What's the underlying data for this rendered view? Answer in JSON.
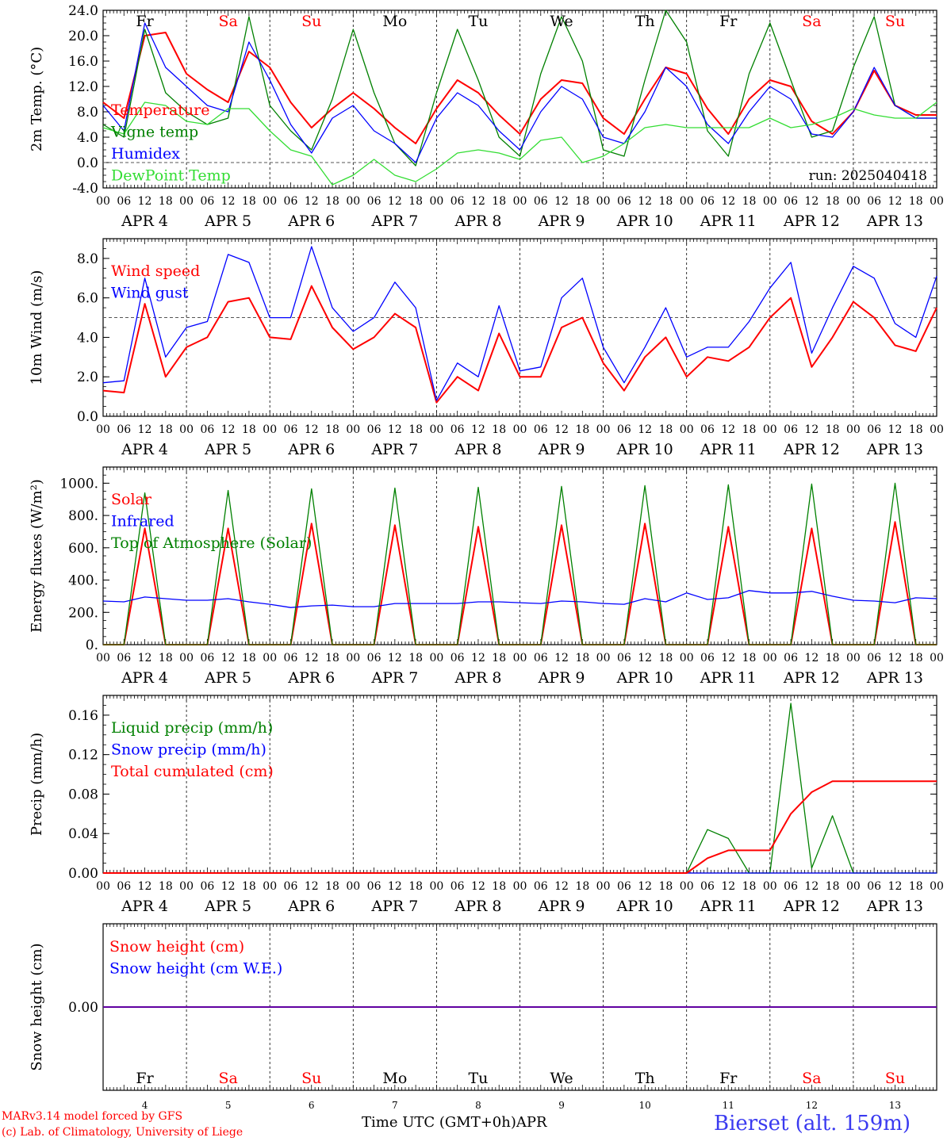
{
  "colors": {
    "red": "#ff0000",
    "darkgreen": "#008000",
    "blue": "#0000ff",
    "lime": "#33dd33",
    "station": "#3a3af0"
  },
  "days": [
    "4",
    "5",
    "6",
    "7",
    "8",
    "9",
    "10",
    "11",
    "12",
    "13"
  ],
  "month": "APR",
  "tick_hours": [
    "00",
    "06",
    "12",
    "18"
  ],
  "weekday_labels": [
    {
      "t": "Fr",
      "color": "#000000"
    },
    {
      "t": "Sa",
      "color": "#ff0000"
    },
    {
      "t": "Su",
      "color": "#ff0000"
    },
    {
      "t": "Mo",
      "color": "#000000"
    },
    {
      "t": "Tu",
      "color": "#000000"
    },
    {
      "t": "We",
      "color": "#000000"
    },
    {
      "t": "Th",
      "color": "#000000"
    },
    {
      "t": "Fr",
      "color": "#000000"
    },
    {
      "t": "Sa",
      "color": "#ff0000"
    },
    {
      "t": "Su",
      "color": "#ff0000"
    }
  ],
  "footer": {
    "model": "MARv3.14 model forced by GFS",
    "lab": "(c) Lab. of Climatology, University of Liege",
    "xlabel": "Time UTC (GMT+0h)",
    "xmonth": "APR",
    "station": "Bierset (alt. 159m)"
  },
  "chart_data": [
    {
      "type": "line",
      "ylabel": "2m Temp. (°C)",
      "ylim": [
        -4,
        24
      ],
      "yticks": [
        "-4.0",
        "0.0",
        "4.0",
        "8.0",
        "12.0",
        "16.0",
        "20.0",
        "24.0"
      ],
      "ref_line": 0,
      "annotation": "run: 2025040418",
      "x_hours": [
        0,
        6,
        12,
        18,
        24,
        30,
        36,
        42,
        48,
        54,
        60,
        66,
        72,
        78,
        84,
        90,
        96,
        102,
        108,
        114,
        120,
        126,
        132,
        138,
        144,
        150,
        156,
        162,
        168,
        174,
        180,
        186,
        192,
        198,
        204,
        210,
        216,
        222,
        228,
        234,
        240
      ],
      "series": [
        {
          "name": "Temperature",
          "color": "#ff0000",
          "values": [
            9.5,
            7,
            20,
            20.5,
            14,
            11.5,
            9.5,
            17.5,
            15,
            9.5,
            5.5,
            8.5,
            11,
            8.5,
            5.5,
            3,
            8.5,
            13,
            11,
            7.5,
            4.5,
            10,
            13,
            12.5,
            7,
            4.5,
            10,
            15,
            14,
            8.5,
            4.5,
            10,
            13,
            12,
            6.5,
            4.5,
            8,
            14.5,
            9,
            7.5,
            7.5
          ]
        },
        {
          "name": "Vigne temp",
          "color": "#008000",
          "values": [
            6,
            4,
            21,
            11,
            8,
            6,
            7,
            23,
            9,
            5,
            2,
            10,
            21,
            11,
            3,
            -0.5,
            11,
            21,
            13,
            4,
            1,
            14,
            23,
            16,
            2,
            1,
            13,
            24,
            19,
            5,
            1,
            14,
            22,
            13,
            4,
            5,
            15,
            23,
            9,
            7,
            7
          ]
        },
        {
          "name": "Humidex",
          "color": "#0000ff",
          "values": [
            9,
            5,
            22,
            15,
            12,
            9,
            8,
            19,
            13,
            6,
            1.5,
            7,
            9,
            5,
            3,
            0,
            7,
            11,
            9,
            5,
            2,
            8,
            12,
            10,
            4,
            3,
            8,
            15,
            12,
            6,
            3,
            8,
            12,
            10,
            4.5,
            4,
            8,
            15,
            9,
            7,
            7
          ]
        },
        {
          "name": "DewPoint Temp",
          "color": "#33dd33",
          "values": [
            5.5,
            4.5,
            9.5,
            9,
            6.5,
            6,
            8.5,
            8.5,
            5,
            2,
            1,
            -3.5,
            -2,
            0.5,
            -2,
            -3,
            -1,
            1.5,
            2,
            1.5,
            0.5,
            3.5,
            4,
            0,
            1,
            3,
            5.5,
            6,
            5.5,
            5.5,
            5.5,
            5.5,
            7,
            5.5,
            6,
            7,
            8.5,
            7.5,
            7,
            7,
            9.5
          ]
        }
      ]
    },
    {
      "type": "line",
      "ylabel": "10m Wind (m/s)",
      "ylim": [
        0,
        9
      ],
      "yticks": [
        "0.0",
        "2.0",
        "4.0",
        "6.0",
        "8.0"
      ],
      "ref_line": 5,
      "x_hours": [
        0,
        6,
        12,
        18,
        24,
        30,
        36,
        42,
        48,
        54,
        60,
        66,
        72,
        78,
        84,
        90,
        96,
        102,
        108,
        114,
        120,
        126,
        132,
        138,
        144,
        150,
        156,
        162,
        168,
        174,
        180,
        186,
        192,
        198,
        204,
        210,
        216,
        222,
        228,
        234,
        240
      ],
      "series": [
        {
          "name": "Wind speed",
          "color": "#ff0000",
          "values": [
            1.3,
            1.2,
            5.7,
            2,
            3.5,
            4,
            5.8,
            6,
            4,
            3.9,
            6.6,
            4.5,
            3.4,
            4,
            5.2,
            4.5,
            0.7,
            2,
            1.3,
            4.2,
            2,
            2,
            4.5,
            5,
            2.7,
            1.3,
            3,
            4,
            2,
            3,
            2.8,
            3.5,
            5,
            6,
            2.5,
            4,
            5.8,
            5,
            3.6,
            3.3,
            5.5
          ]
        },
        {
          "name": "Wind gust",
          "color": "#0000ff",
          "values": [
            1.7,
            1.8,
            7,
            3,
            4.5,
            4.8,
            8.2,
            7.8,
            5,
            5,
            8.6,
            5.5,
            4.3,
            5,
            6.8,
            5.5,
            0.8,
            2.7,
            2,
            5.6,
            2.3,
            2.5,
            6,
            7,
            3.5,
            1.7,
            3.5,
            5.5,
            3,
            3.5,
            3.5,
            4.8,
            6.5,
            7.8,
            3.2,
            5.5,
            7.6,
            7,
            4.7,
            4,
            7.1
          ]
        }
      ]
    },
    {
      "type": "line",
      "ylabel": "Energy fluxes (W/m²)",
      "ylim": [
        0,
        1100
      ],
      "yticks": [
        "0.",
        "200.",
        "400.",
        "600.",
        "800.",
        "1000."
      ],
      "x_hours": [
        0,
        6,
        12,
        18,
        24,
        30,
        36,
        42,
        48,
        54,
        60,
        66,
        72,
        78,
        84,
        90,
        96,
        102,
        108,
        114,
        120,
        126,
        132,
        138,
        144,
        150,
        156,
        162,
        168,
        174,
        180,
        186,
        192,
        198,
        204,
        210,
        216,
        222,
        228,
        234,
        240
      ],
      "series": [
        {
          "name": "Solar",
          "color": "#ff0000",
          "values": [
            0,
            0,
            720,
            0,
            0,
            0,
            720,
            0,
            0,
            0,
            750,
            0,
            0,
            0,
            740,
            0,
            0,
            0,
            730,
            0,
            0,
            0,
            740,
            0,
            0,
            0,
            750,
            0,
            0,
            0,
            730,
            0,
            0,
            0,
            720,
            0,
            0,
            0,
            760,
            0,
            0
          ]
        },
        {
          "name": "Infrared",
          "color": "#0000ff",
          "values": [
            270,
            265,
            295,
            285,
            275,
            275,
            285,
            265,
            250,
            230,
            240,
            245,
            235,
            235,
            255,
            255,
            255,
            255,
            265,
            265,
            260,
            255,
            270,
            265,
            255,
            250,
            285,
            265,
            320,
            280,
            290,
            335,
            320,
            320,
            330,
            300,
            275,
            270,
            260,
            290,
            285
          ]
        },
        {
          "name": "Top of Atmosphere (Solar)",
          "color": "#008000",
          "values": [
            0,
            0,
            940,
            0,
            0,
            0,
            955,
            0,
            0,
            0,
            965,
            0,
            0,
            0,
            970,
            0,
            0,
            0,
            975,
            0,
            0,
            0,
            980,
            0,
            0,
            0,
            985,
            0,
            0,
            0,
            990,
            0,
            0,
            0,
            995,
            0,
            0,
            0,
            1000,
            0,
            0
          ]
        }
      ]
    },
    {
      "type": "line",
      "ylabel": "Precip (mm/h)",
      "ylim": [
        0,
        0.18
      ],
      "yticks": [
        "0.00",
        "0.04",
        "0.08",
        "0.12",
        "0.16"
      ],
      "x_hours": [
        0,
        6,
        12,
        18,
        24,
        30,
        36,
        42,
        48,
        54,
        60,
        66,
        72,
        78,
        84,
        90,
        96,
        102,
        108,
        114,
        120,
        126,
        132,
        138,
        144,
        150,
        156,
        162,
        168,
        174,
        180,
        186,
        192,
        198,
        204,
        210,
        216,
        222,
        228,
        234,
        240
      ],
      "series": [
        {
          "name": "Liquid precip (mm/h)",
          "color": "#008000",
          "values": [
            0,
            0,
            0,
            0,
            0,
            0,
            0,
            0,
            0,
            0,
            0,
            0,
            0,
            0,
            0,
            0,
            0,
            0,
            0,
            0,
            0,
            0,
            0,
            0,
            0,
            0,
            0,
            0,
            0,
            0.044,
            0.035,
            0,
            0,
            0.172,
            0.005,
            0.058,
            0,
            0,
            0,
            0,
            0
          ]
        },
        {
          "name": "Snow precip (mm/h)",
          "color": "#0000ff",
          "values": [
            0,
            0,
            0,
            0,
            0,
            0,
            0,
            0,
            0,
            0,
            0,
            0,
            0,
            0,
            0,
            0,
            0,
            0,
            0,
            0,
            0,
            0,
            0,
            0,
            0,
            0,
            0,
            0,
            0,
            0,
            0,
            0,
            0,
            0,
            0,
            0,
            0,
            0,
            0,
            0,
            0
          ]
        },
        {
          "name": "Total cumulated (cm)",
          "color": "#ff0000",
          "values": [
            0,
            0,
            0,
            0,
            0,
            0,
            0,
            0,
            0,
            0,
            0,
            0,
            0,
            0,
            0,
            0,
            0,
            0,
            0,
            0,
            0,
            0,
            0,
            0,
            0,
            0,
            0,
            0,
            0,
            0.015,
            0.023,
            0.023,
            0.023,
            0.06,
            0.082,
            0.093,
            0.093,
            0.093,
            0.093,
            0.093,
            0.093
          ]
        }
      ]
    },
    {
      "type": "line",
      "ylabel": "Snow height (cm)",
      "ylim": [
        -1,
        1
      ],
      "yticks": [
        "0.00"
      ],
      "x_hours": [
        0,
        240
      ],
      "series": [
        {
          "name": "Snow height (cm)",
          "color": "#ff0000",
          "values": [
            0,
            0
          ]
        },
        {
          "name": "Snow height (cm W.E.)",
          "color": "#0000ff",
          "values": [
            0,
            0
          ]
        }
      ]
    }
  ]
}
